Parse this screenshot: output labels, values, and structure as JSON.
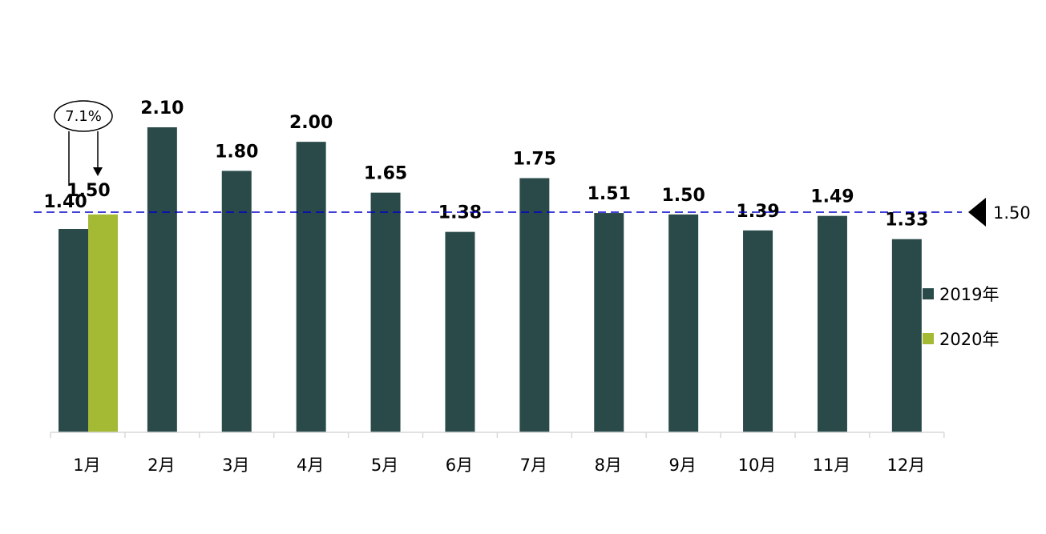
{
  "chart_data": {
    "type": "bar",
    "categories": [
      "1月",
      "2月",
      "3月",
      "4月",
      "5月",
      "6月",
      "7月",
      "8月",
      "9月",
      "10月",
      "11月",
      "12月"
    ],
    "series": [
      {
        "name": "2019年",
        "color": "#2a4a4a",
        "values": [
          1.4,
          2.1,
          1.8,
          2.0,
          1.65,
          1.38,
          1.75,
          1.51,
          1.5,
          1.39,
          1.49,
          1.33
        ]
      },
      {
        "name": "2020年",
        "color": "#a4b934",
        "values": [
          1.5,
          null,
          null,
          null,
          null,
          null,
          null,
          null,
          null,
          null,
          null,
          null
        ]
      }
    ],
    "value_labels": {
      "2019年": [
        "1.40",
        "2.10",
        "1.80",
        "2.00",
        "1.65",
        "1.38",
        "1.75",
        "1.51",
        "1.50",
        "1.39",
        "1.49",
        "1.33"
      ],
      "2020年": [
        "1.50"
      ]
    },
    "reference_line": {
      "value": 1.5,
      "label": "1.50",
      "color": "#0000cc",
      "style": "dashed"
    },
    "annotation": {
      "text": "7.1%",
      "category": "1月"
    },
    "ylim": [
      0,
      2.1
    ],
    "legend_position": "right",
    "grid": false
  }
}
